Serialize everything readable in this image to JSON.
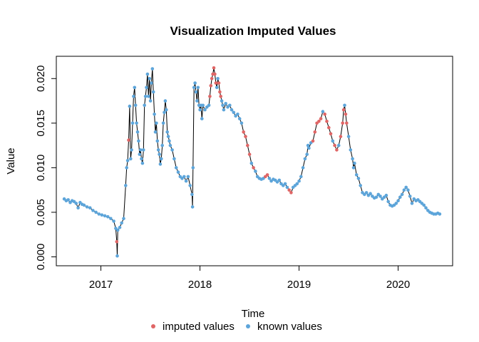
{
  "chart_data": {
    "type": "line",
    "title": "Visualization Imputed Values",
    "xlabel": "Time",
    "ylabel": "Value",
    "xlim": [
      2016.55,
      2020.55
    ],
    "ylim": [
      -0.001,
      0.0225
    ],
    "x_ticks": [
      2017,
      2018,
      2019,
      2020
    ],
    "x_tick_labels": [
      "2017",
      "2018",
      "2019",
      "2020"
    ],
    "y_ticks": [
      0.0,
      0.005,
      0.01,
      0.015,
      0.02
    ],
    "y_tick_labels": [
      "0.000",
      "0.005",
      "0.010",
      "0.015",
      "0.020"
    ],
    "grid": false,
    "legend_position": "bottom",
    "series": [
      {
        "name": "imputed values",
        "color": "#E06666"
      },
      {
        "name": "known values",
        "color": "#5DA5DA"
      }
    ],
    "points": [
      [
        2016.63,
        0.0065,
        "k"
      ],
      [
        2016.65,
        0.0063,
        "k"
      ],
      [
        2016.67,
        0.0064,
        "k"
      ],
      [
        2016.69,
        0.0061,
        "k"
      ],
      [
        2016.71,
        0.0063,
        "k"
      ],
      [
        2016.73,
        0.0062,
        "k"
      ],
      [
        2016.75,
        0.006,
        "k"
      ],
      [
        2016.77,
        0.0055,
        "k"
      ],
      [
        2016.79,
        0.0061,
        "k"
      ],
      [
        2016.81,
        0.0059,
        "k"
      ],
      [
        2016.83,
        0.0058,
        "k"
      ],
      [
        2016.86,
        0.0056,
        "k"
      ],
      [
        2016.89,
        0.0055,
        "k"
      ],
      [
        2016.92,
        0.0052,
        "k"
      ],
      [
        2016.95,
        0.005,
        "k"
      ],
      [
        2016.98,
        0.0048,
        "k"
      ],
      [
        2017.01,
        0.0047,
        "k"
      ],
      [
        2017.04,
        0.0046,
        "k"
      ],
      [
        2017.07,
        0.0045,
        "k"
      ],
      [
        2017.1,
        0.0043,
        "k"
      ],
      [
        2017.13,
        0.004,
        "k"
      ],
      [
        2017.15,
        0.0032,
        "k"
      ],
      [
        2017.16,
        0.0017,
        "i"
      ],
      [
        2017.165,
        0.0001,
        "k"
      ],
      [
        2017.17,
        0.003,
        "k"
      ],
      [
        2017.19,
        0.0033,
        "k"
      ],
      [
        2017.21,
        0.0038,
        "k"
      ],
      [
        2017.23,
        0.0043,
        "k"
      ],
      [
        2017.25,
        0.008,
        "k"
      ],
      [
        2017.26,
        0.01,
        "k"
      ],
      [
        2017.27,
        0.0108,
        "k"
      ],
      [
        2017.28,
        0.0131,
        "i"
      ],
      [
        2017.29,
        0.0169,
        "k"
      ],
      [
        2017.3,
        0.011,
        "k"
      ],
      [
        2017.31,
        0.012,
        "k"
      ],
      [
        2017.32,
        0.015,
        "k"
      ],
      [
        2017.33,
        0.018,
        "k"
      ],
      [
        2017.34,
        0.019,
        "k"
      ],
      [
        2017.35,
        0.017,
        "k"
      ],
      [
        2017.36,
        0.015,
        "k"
      ],
      [
        2017.37,
        0.014,
        "k"
      ],
      [
        2017.38,
        0.013,
        "k"
      ],
      [
        2017.39,
        0.0115,
        "k"
      ],
      [
        2017.4,
        0.012,
        "k"
      ],
      [
        2017.41,
        0.011,
        "k"
      ],
      [
        2017.42,
        0.0105,
        "k"
      ],
      [
        2017.43,
        0.012,
        "k"
      ],
      [
        2017.44,
        0.017,
        "k"
      ],
      [
        2017.45,
        0.018,
        "k"
      ],
      [
        2017.46,
        0.019,
        "k"
      ],
      [
        2017.47,
        0.0205,
        "k"
      ],
      [
        2017.48,
        0.018,
        "k"
      ],
      [
        2017.49,
        0.02,
        "k"
      ],
      [
        2017.5,
        0.0175,
        "k"
      ],
      [
        2017.51,
        0.0195,
        "k"
      ],
      [
        2017.52,
        0.0211,
        "k"
      ],
      [
        2017.53,
        0.0185,
        "k"
      ],
      [
        2017.54,
        0.016,
        "k"
      ],
      [
        2017.55,
        0.014,
        "k"
      ],
      [
        2017.56,
        0.015,
        "k"
      ],
      [
        2017.57,
        0.013,
        "k"
      ],
      [
        2017.58,
        0.012,
        "k"
      ],
      [
        2017.59,
        0.0115,
        "k"
      ],
      [
        2017.6,
        0.0104,
        "k"
      ],
      [
        2017.61,
        0.011,
        "k"
      ],
      [
        2017.62,
        0.0125,
        "k"
      ],
      [
        2017.63,
        0.015,
        "k"
      ],
      [
        2017.64,
        0.0162,
        "k"
      ],
      [
        2017.65,
        0.0175,
        "k"
      ],
      [
        2017.66,
        0.0165,
        "k"
      ],
      [
        2017.67,
        0.014,
        "k"
      ],
      [
        2017.68,
        0.0135,
        "k"
      ],
      [
        2017.69,
        0.013,
        "k"
      ],
      [
        2017.7,
        0.0125,
        "k"
      ],
      [
        2017.72,
        0.012,
        "k"
      ],
      [
        2017.74,
        0.011,
        "k"
      ],
      [
        2017.76,
        0.01,
        "k"
      ],
      [
        2017.78,
        0.0095,
        "k"
      ],
      [
        2017.8,
        0.009,
        "k"
      ],
      [
        2017.82,
        0.0088,
        "k"
      ],
      [
        2017.84,
        0.009,
        "k"
      ],
      [
        2017.86,
        0.0085,
        "k"
      ],
      [
        2017.88,
        0.009,
        "k"
      ],
      [
        2017.9,
        0.008,
        "k"
      ],
      [
        2017.92,
        0.007,
        "k"
      ],
      [
        2017.925,
        0.0056,
        "k"
      ],
      [
        2017.93,
        0.01,
        "k"
      ],
      [
        2017.94,
        0.019,
        "k"
      ],
      [
        2017.95,
        0.0195,
        "k"
      ],
      [
        2017.96,
        0.0185,
        "k"
      ],
      [
        2017.97,
        0.0175,
        "k"
      ],
      [
        2017.98,
        0.019,
        "k"
      ],
      [
        2017.99,
        0.017,
        "k"
      ],
      [
        2018.0,
        0.0165,
        "k"
      ],
      [
        2018.01,
        0.017,
        "k"
      ],
      [
        2018.02,
        0.0155,
        "k"
      ],
      [
        2018.03,
        0.017,
        "k"
      ],
      [
        2018.05,
        0.0165,
        "k"
      ],
      [
        2018.07,
        0.0168,
        "k"
      ],
      [
        2018.09,
        0.017,
        "k"
      ],
      [
        2018.1,
        0.018,
        "i"
      ],
      [
        2018.11,
        0.0192,
        "i"
      ],
      [
        2018.12,
        0.02,
        "i"
      ],
      [
        2018.13,
        0.0205,
        "i"
      ],
      [
        2018.14,
        0.0212,
        "i"
      ],
      [
        2018.15,
        0.0205,
        "i"
      ],
      [
        2018.16,
        0.0195,
        "i"
      ],
      [
        2018.17,
        0.019,
        "k"
      ],
      [
        2018.18,
        0.02,
        "k"
      ],
      [
        2018.19,
        0.0195,
        "i"
      ],
      [
        2018.2,
        0.0185,
        "i"
      ],
      [
        2018.21,
        0.018,
        "i"
      ],
      [
        2018.22,
        0.0175,
        "k"
      ],
      [
        2018.23,
        0.017,
        "k"
      ],
      [
        2018.24,
        0.0165,
        "k"
      ],
      [
        2018.26,
        0.0172,
        "k"
      ],
      [
        2018.28,
        0.0168,
        "k"
      ],
      [
        2018.3,
        0.017,
        "k"
      ],
      [
        2018.32,
        0.0165,
        "k"
      ],
      [
        2018.34,
        0.0162,
        "k"
      ],
      [
        2018.36,
        0.0158,
        "k"
      ],
      [
        2018.38,
        0.016,
        "k"
      ],
      [
        2018.4,
        0.0155,
        "k"
      ],
      [
        2018.42,
        0.015,
        "k"
      ],
      [
        2018.44,
        0.014,
        "i"
      ],
      [
        2018.46,
        0.0135,
        "i"
      ],
      [
        2018.48,
        0.0125,
        "i"
      ],
      [
        2018.5,
        0.0115,
        "i"
      ],
      [
        2018.52,
        0.0105,
        "k"
      ],
      [
        2018.54,
        0.01,
        "i"
      ],
      [
        2018.56,
        0.0096,
        "k"
      ],
      [
        2018.58,
        0.009,
        "k"
      ],
      [
        2018.6,
        0.0088,
        "k"
      ],
      [
        2018.62,
        0.0087,
        "k"
      ],
      [
        2018.64,
        0.0088,
        "k"
      ],
      [
        2018.66,
        0.009,
        "i"
      ],
      [
        2018.68,
        0.0092,
        "i"
      ],
      [
        2018.7,
        0.0088,
        "k"
      ],
      [
        2018.72,
        0.0085,
        "k"
      ],
      [
        2018.74,
        0.0087,
        "k"
      ],
      [
        2018.76,
        0.0086,
        "k"
      ],
      [
        2018.78,
        0.0084,
        "k"
      ],
      [
        2018.8,
        0.0086,
        "k"
      ],
      [
        2018.82,
        0.0082,
        "k"
      ],
      [
        2018.84,
        0.008,
        "k"
      ],
      [
        2018.86,
        0.0082,
        "k"
      ],
      [
        2018.88,
        0.0078,
        "k"
      ],
      [
        2018.9,
        0.0075,
        "i"
      ],
      [
        2018.92,
        0.0072,
        "i"
      ],
      [
        2018.94,
        0.0078,
        "k"
      ],
      [
        2018.96,
        0.008,
        "k"
      ],
      [
        2018.98,
        0.0082,
        "k"
      ],
      [
        2019.0,
        0.0085,
        "k"
      ],
      [
        2019.02,
        0.009,
        "k"
      ],
      [
        2019.04,
        0.01,
        "k"
      ],
      [
        2019.06,
        0.011,
        "k"
      ],
      [
        2019.08,
        0.0115,
        "k"
      ],
      [
        2019.09,
        0.0125,
        "k"
      ],
      [
        2019.1,
        0.0122,
        "k"
      ],
      [
        2019.12,
        0.0128,
        "k"
      ],
      [
        2019.14,
        0.013,
        "i"
      ],
      [
        2019.16,
        0.014,
        "i"
      ],
      [
        2019.18,
        0.015,
        "i"
      ],
      [
        2019.2,
        0.0152,
        "i"
      ],
      [
        2019.22,
        0.0155,
        "i"
      ],
      [
        2019.24,
        0.0163,
        "k"
      ],
      [
        2019.26,
        0.016,
        "i"
      ],
      [
        2019.28,
        0.0152,
        "i"
      ],
      [
        2019.3,
        0.0145,
        "i"
      ],
      [
        2019.32,
        0.0138,
        "i"
      ],
      [
        2019.34,
        0.013,
        "k"
      ],
      [
        2019.36,
        0.0125,
        "i"
      ],
      [
        2019.38,
        0.012,
        "i"
      ],
      [
        2019.4,
        0.0125,
        "k"
      ],
      [
        2019.42,
        0.0135,
        "i"
      ],
      [
        2019.44,
        0.015,
        "i"
      ],
      [
        2019.45,
        0.0165,
        "i"
      ],
      [
        2019.46,
        0.017,
        "k"
      ],
      [
        2019.47,
        0.016,
        "i"
      ],
      [
        2019.48,
        0.015,
        "i"
      ],
      [
        2019.5,
        0.0135,
        "k"
      ],
      [
        2019.52,
        0.012,
        "k"
      ],
      [
        2019.54,
        0.011,
        "k"
      ],
      [
        2019.55,
        0.01,
        "k"
      ],
      [
        2019.56,
        0.0105,
        "k"
      ],
      [
        2019.58,
        0.0092,
        "k"
      ],
      [
        2019.6,
        0.0088,
        "k"
      ],
      [
        2019.62,
        0.008,
        "k"
      ],
      [
        2019.64,
        0.0072,
        "k"
      ],
      [
        2019.66,
        0.007,
        "k"
      ],
      [
        2019.68,
        0.0072,
        "k"
      ],
      [
        2019.7,
        0.0069,
        "k"
      ],
      [
        2019.72,
        0.0071,
        "k"
      ],
      [
        2019.74,
        0.0068,
        "k"
      ],
      [
        2019.76,
        0.0066,
        "k"
      ],
      [
        2019.78,
        0.0067,
        "k"
      ],
      [
        2019.8,
        0.007,
        "k"
      ],
      [
        2019.82,
        0.0068,
        "k"
      ],
      [
        2019.84,
        0.0065,
        "k"
      ],
      [
        2019.86,
        0.0067,
        "k"
      ],
      [
        2019.88,
        0.0069,
        "k"
      ],
      [
        2019.9,
        0.0062,
        "k"
      ],
      [
        2019.92,
        0.0058,
        "k"
      ],
      [
        2019.94,
        0.0057,
        "k"
      ],
      [
        2019.96,
        0.0058,
        "k"
      ],
      [
        2019.98,
        0.006,
        "k"
      ],
      [
        2020.0,
        0.0063,
        "k"
      ],
      [
        2020.02,
        0.0067,
        "k"
      ],
      [
        2020.04,
        0.007,
        "k"
      ],
      [
        2020.06,
        0.0075,
        "k"
      ],
      [
        2020.08,
        0.0078,
        "k"
      ],
      [
        2020.1,
        0.0075,
        "k"
      ],
      [
        2020.12,
        0.0068,
        "k"
      ],
      [
        2020.14,
        0.006,
        "k"
      ],
      [
        2020.16,
        0.0065,
        "k"
      ],
      [
        2020.18,
        0.0063,
        "k"
      ],
      [
        2020.2,
        0.0064,
        "k"
      ],
      [
        2020.22,
        0.0062,
        "k"
      ],
      [
        2020.24,
        0.006,
        "k"
      ],
      [
        2020.26,
        0.0058,
        "k"
      ],
      [
        2020.28,
        0.0055,
        "k"
      ],
      [
        2020.3,
        0.0052,
        "k"
      ],
      [
        2020.32,
        0.005,
        "k"
      ],
      [
        2020.34,
        0.0049,
        "k"
      ],
      [
        2020.36,
        0.0048,
        "k"
      ],
      [
        2020.38,
        0.0048,
        "k"
      ],
      [
        2020.4,
        0.0049,
        "k"
      ],
      [
        2020.42,
        0.0048,
        "k"
      ]
    ]
  }
}
